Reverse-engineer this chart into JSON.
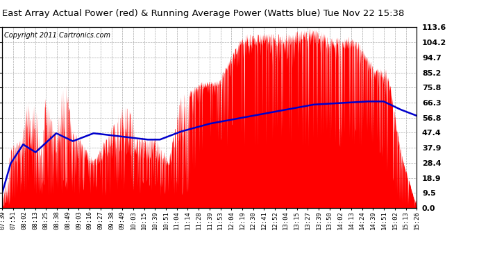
{
  "title": "East Array Actual Power (red) & Running Average Power (Watts blue) Tue Nov 22 15:38",
  "copyright": "Copyright 2011 Cartronics.com",
  "yticks": [
    0.0,
    9.5,
    18.9,
    28.4,
    37.9,
    47.4,
    56.8,
    66.3,
    75.8,
    85.2,
    94.7,
    104.2,
    113.6
  ],
  "ymax": 113.6,
  "ymin": 0.0,
  "bg_color": "#ffffff",
  "plot_bg_color": "#ffffff",
  "grid_color": "#aaaaaa",
  "bar_color": "#ff0000",
  "avg_color": "#0000cc",
  "xtick_labels": [
    "07:39",
    "07:51",
    "08:02",
    "08:13",
    "08:25",
    "08:38",
    "08:49",
    "09:03",
    "09:16",
    "09:27",
    "09:38",
    "09:49",
    "10:03",
    "10:15",
    "10:39",
    "10:51",
    "11:04",
    "11:14",
    "11:28",
    "11:39",
    "11:53",
    "12:04",
    "12:19",
    "12:30",
    "12:41",
    "12:52",
    "13:04",
    "13:15",
    "13:27",
    "13:39",
    "13:50",
    "14:02",
    "14:13",
    "14:24",
    "14:39",
    "14:51",
    "15:02",
    "15:13",
    "15:26"
  ]
}
